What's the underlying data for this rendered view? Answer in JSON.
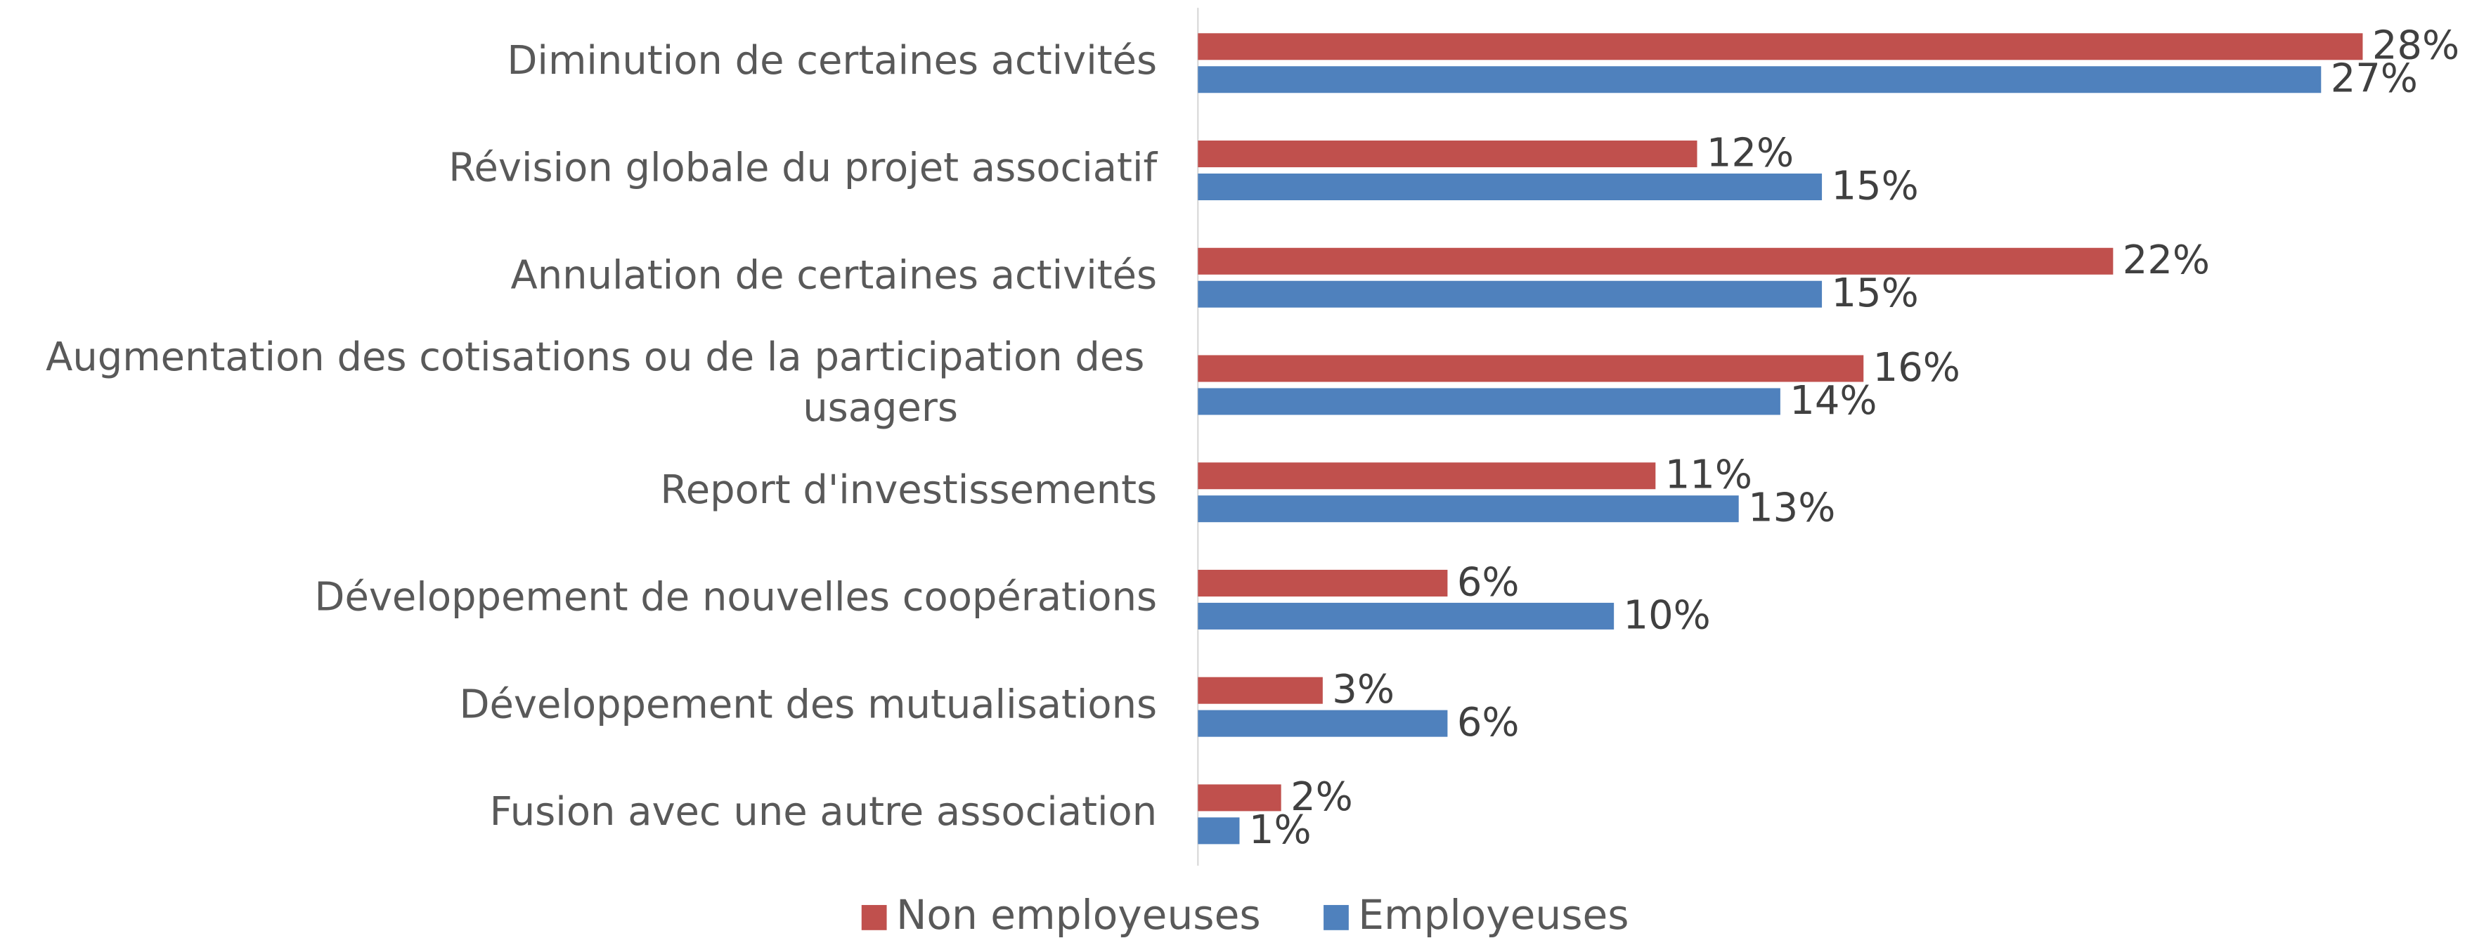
{
  "chart_data": {
    "type": "hbar",
    "categories": [
      "Diminution de certaines activités",
      "Révision globale du projet associatif",
      "Annulation de certaines activités",
      "Augmentation des cotisations ou de la participation des usagers",
      "Report d'investissements",
      "Développement de nouvelles coopérations",
      "Développement des mutualisations",
      "Fusion avec une autre association"
    ],
    "series": [
      {
        "name": "Non employeuses",
        "color": "#c0504d",
        "values": [
          28,
          12,
          22,
          16,
          11,
          6,
          3,
          2
        ],
        "value_labels": [
          "28%",
          "12%",
          "22%",
          "16%",
          "11%",
          "6%",
          "3%",
          "2%"
        ]
      },
      {
        "name": "Employeuses",
        "color": "#4f81bd",
        "values": [
          27,
          15,
          15,
          14,
          13,
          10,
          6,
          1
        ],
        "value_labels": [
          "27%",
          "15%",
          "15%",
          "14%",
          "13%",
          "10%",
          "6%",
          "1%"
        ]
      }
    ],
    "xlim": [
      0,
      30
    ],
    "legend": "bottom"
  }
}
